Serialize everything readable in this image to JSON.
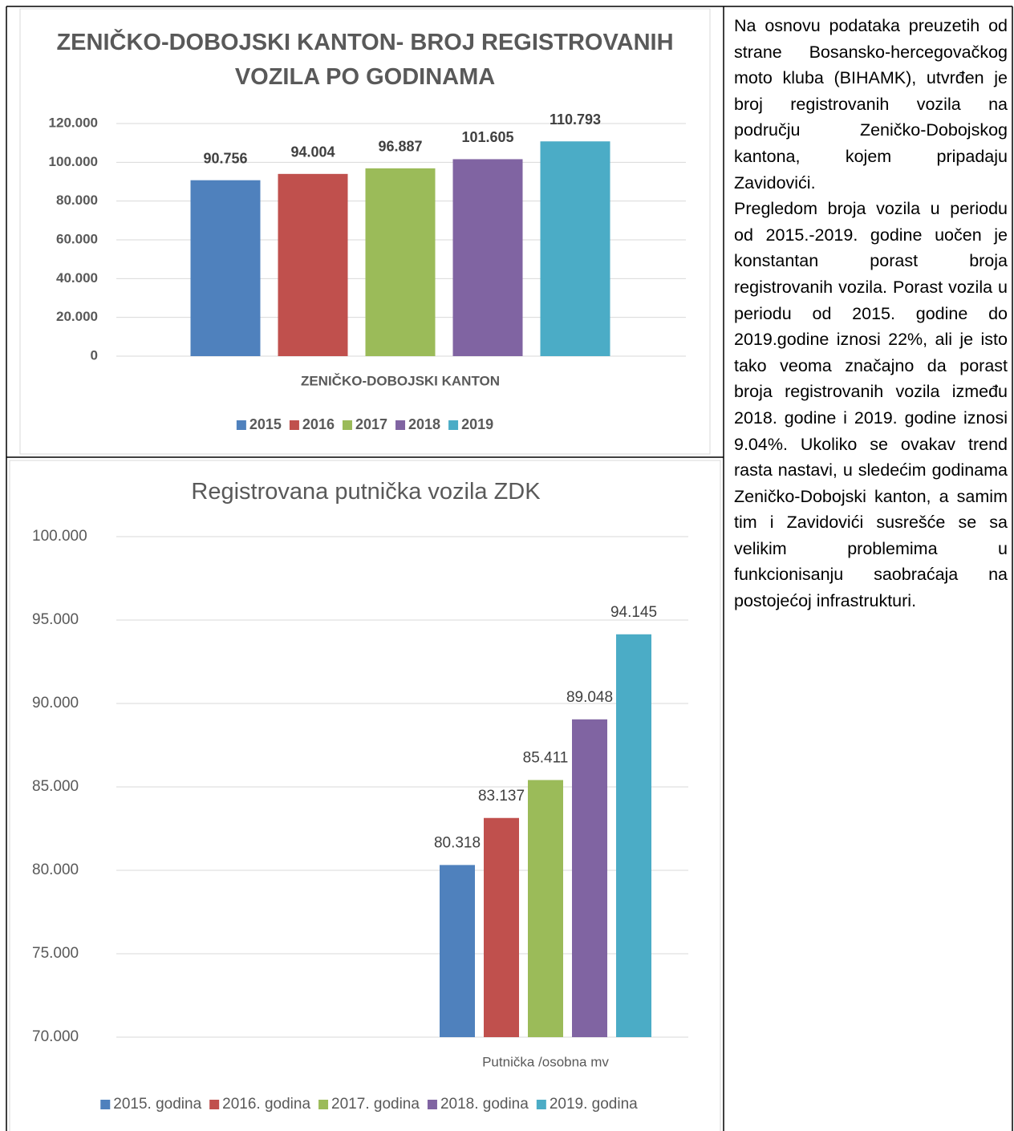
{
  "chart_data": [
    {
      "type": "bar",
      "title": "ZENIČKO-DOBOJSKI KANTON- BROJ REGISTROVANIH VOZILA PO GODINAMA",
      "categories": [
        "ZENIČKO-DOBOJSKI KANTON"
      ],
      "series": [
        {
          "name": "2015",
          "color": "#4f81bd",
          "values": [
            90756
          ],
          "value_labels": [
            "90.756"
          ]
        },
        {
          "name": "2016",
          "color": "#c0504d",
          "values": [
            94004
          ],
          "value_labels": [
            "94.004"
          ]
        },
        {
          "name": "2017",
          "color": "#9bbb59",
          "values": [
            96887
          ],
          "value_labels": [
            "96.887"
          ]
        },
        {
          "name": "2018",
          "color": "#8064a2",
          "values": [
            101605
          ],
          "value_labels": [
            "101.605"
          ]
        },
        {
          "name": "2019",
          "color": "#4bacc6",
          "values": [
            110793
          ],
          "value_labels": [
            "110.793"
          ]
        }
      ],
      "ylim": [
        0,
        120000
      ],
      "yticks": [
        0,
        {
          "value": 20000,
          "label": "20.000"
        },
        {
          "value": 40000,
          "label": "40.000"
        },
        {
          "value": 60000,
          "label": "60.000"
        },
        {
          "value": 80000,
          "label": "80.000"
        },
        {
          "value": 100000,
          "label": "100.000"
        },
        {
          "value": 120000,
          "label": "120.000"
        }
      ],
      "grid": true,
      "legend": "bottom"
    },
    {
      "type": "bar",
      "title": "Registrovana putnička vozila ZDK",
      "categories": [
        "Putnička /osobna mv"
      ],
      "series": [
        {
          "name": "2015. godina",
          "color": "#4f81bd",
          "values": [
            80318
          ],
          "value_labels": [
            "80.318"
          ]
        },
        {
          "name": "2016. godina",
          "color": "#c0504d",
          "values": [
            83137
          ],
          "value_labels": [
            "83.137"
          ]
        },
        {
          "name": "2017. godina",
          "color": "#9bbb59",
          "values": [
            85411
          ],
          "value_labels": [
            "85.411"
          ]
        },
        {
          "name": "2018. godina",
          "color": "#8064a2",
          "values": [
            89048
          ],
          "value_labels": [
            "89.048"
          ]
        },
        {
          "name": "2019. godina",
          "color": "#4bacc6",
          "values": [
            94145
          ],
          "value_labels": [
            "94.145"
          ]
        }
      ],
      "ylim": [
        70000,
        100000
      ],
      "yticks": [
        {
          "value": 70000,
          "label": "70.000"
        },
        {
          "value": 75000,
          "label": "75.000"
        },
        {
          "value": 80000,
          "label": "80.000"
        },
        {
          "value": 85000,
          "label": "85.000"
        },
        {
          "value": 90000,
          "label": "90.000"
        },
        {
          "value": 95000,
          "label": "95.000"
        },
        {
          "value": 100000,
          "label": "100.000"
        }
      ],
      "grid": true,
      "legend": "bottom"
    }
  ],
  "text": {
    "paragraphs": [
      "Na osnovu podataka preuzetih od strane Bosansko-hercegovačkog moto kluba (BIHAMK), utvrđen je broj registrovanih vozila na području Zeničko-Dobojskog kantona, kojem pripadaju Zavidovići.",
      "Pregledom broja vozila u periodu od 2015.-2019. godine uočen je konstantan porast broja registrovanih vozila. Porast vozila u periodu od 2015. godine do 2019.godine iznosi 22%, ali je isto tako veoma značajno da porast broja registrovanih vozila između 2018. godine i 2019. godine iznosi 9.04%. Ukoliko se ovakav trend rasta nastavi, u sledećim godinama Zeničko-Dobojski kanton, a samim tim i Zavidovići susrešće se sa velikim problemima u funkcionisanju saobraćaja na postojećoj infrastrukturi."
    ]
  }
}
